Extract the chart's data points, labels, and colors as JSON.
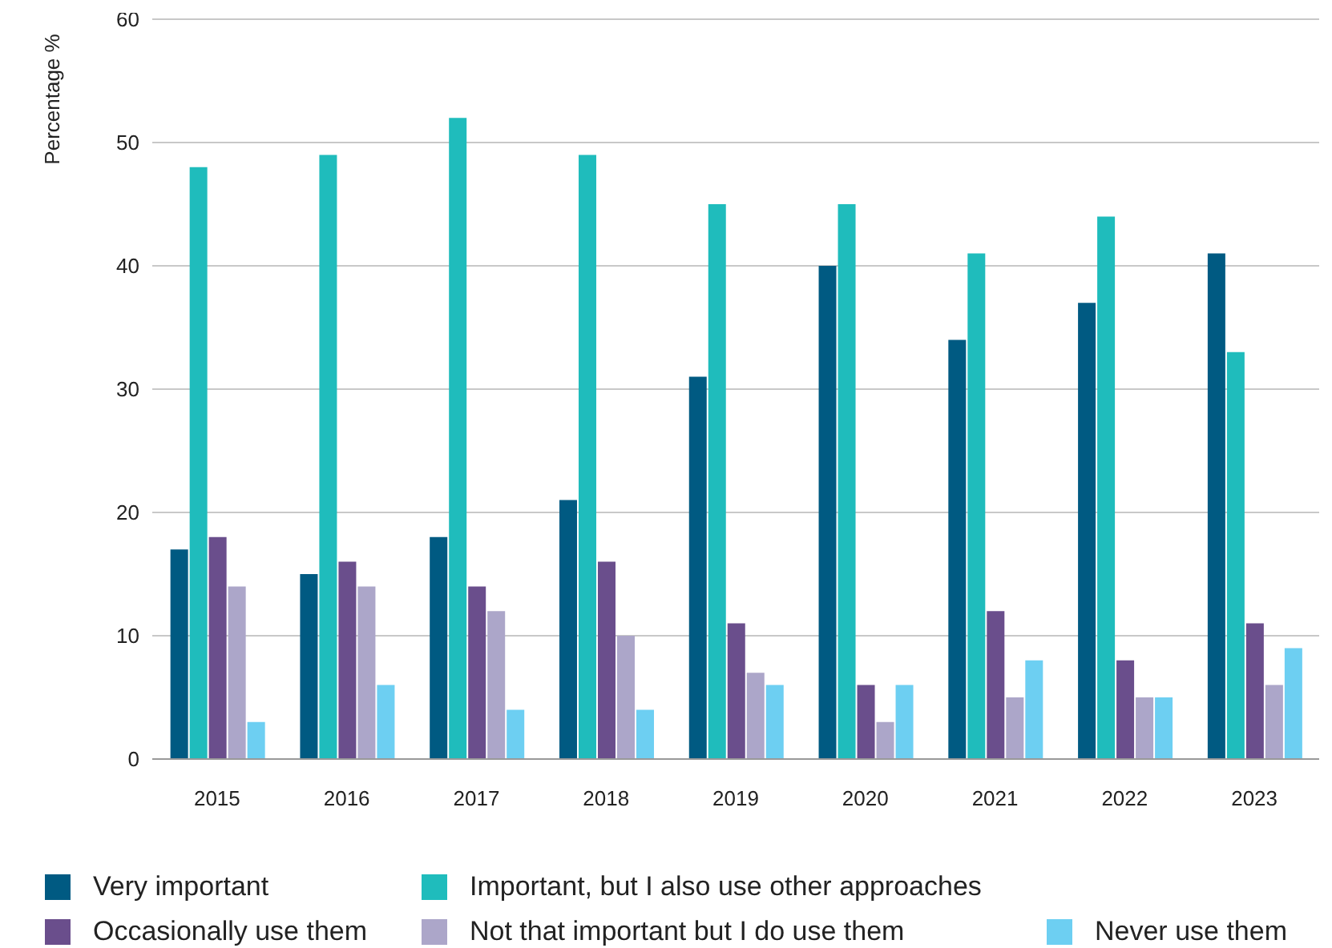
{
  "chart_data": {
    "type": "bar",
    "ylabel": "Percentage %",
    "categories": [
      "2015",
      "2016",
      "2017",
      "2018",
      "2019",
      "2020",
      "2021",
      "2022",
      "2023"
    ],
    "series": [
      {
        "name": "Very important",
        "color": "#005a82",
        "values": [
          17,
          15,
          18,
          21,
          31,
          40,
          34,
          37,
          41
        ]
      },
      {
        "name": "Important, but I also use other approaches",
        "color": "#1fbcbc",
        "values": [
          48,
          49,
          52,
          49,
          45,
          45,
          41,
          44,
          33
        ]
      },
      {
        "name": "Occasionally use them",
        "color": "#6a4e8c",
        "values": [
          18,
          16,
          14,
          16,
          11,
          6,
          12,
          8,
          11
        ]
      },
      {
        "name": "Not that important but I do use them",
        "color": "#aca6c9",
        "values": [
          14,
          14,
          12,
          10,
          7,
          3,
          5,
          5,
          6
        ]
      },
      {
        "name": "Never use them",
        "color": "#6dcff2",
        "values": [
          3,
          6,
          4,
          4,
          6,
          6,
          8,
          5,
          9
        ]
      }
    ],
    "ylim": [
      0,
      60
    ],
    "yticks": [
      0,
      10,
      20,
      30,
      40,
      50,
      60
    ],
    "grid": "y",
    "legend": "bottom"
  }
}
